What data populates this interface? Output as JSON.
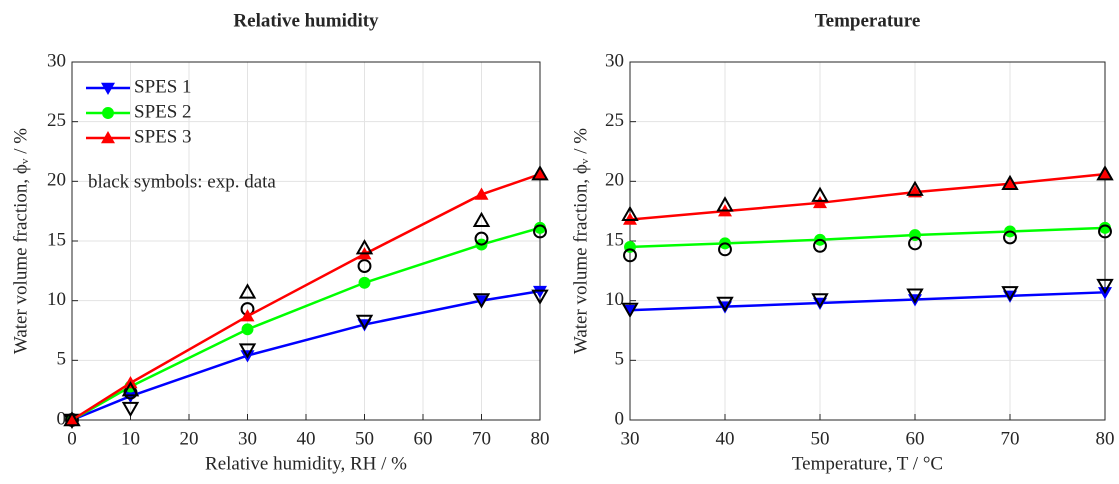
{
  "chart_data": [
    {
      "type": "line",
      "title": "Relative humidity",
      "xlabel": "Relative humidity, RH / %",
      "ylabel": "Water volume fraction, ϕᵥ / %",
      "x": [
        0,
        10,
        30,
        50,
        70,
        80
      ],
      "xlim": [
        0,
        80
      ],
      "xticks": [
        0,
        10,
        20,
        30,
        40,
        50,
        60,
        70,
        80
      ],
      "ylim": [
        0,
        30
      ],
      "yticks": [
        0,
        5,
        10,
        15,
        20,
        25,
        30
      ],
      "grid": true,
      "legend": "upper left",
      "annotation": "black symbols: exp. data",
      "series": [
        {
          "name": "SPES 1",
          "color": "#0000ff",
          "marker": "v",
          "values": [
            0,
            2.0,
            5.4,
            8.0,
            10.0,
            10.8
          ],
          "exp_values": [
            0,
            1.0,
            5.9,
            8.3,
            10.1,
            10.4
          ]
        },
        {
          "name": "SPES 2",
          "color": "#00ff00",
          "marker": "o",
          "values": [
            0,
            2.8,
            7.6,
            11.5,
            14.7,
            16.1
          ],
          "exp_values": [
            0,
            2.3,
            9.3,
            12.9,
            15.2,
            15.8
          ]
        },
        {
          "name": "SPES 3",
          "color": "#ff0000",
          "marker": "^",
          "values": [
            0,
            3.1,
            8.7,
            13.9,
            18.9,
            20.6
          ],
          "exp_values": [
            0,
            2.5,
            10.7,
            14.4,
            16.7,
            20.6
          ]
        }
      ]
    },
    {
      "type": "line",
      "title": "Temperature",
      "xlabel": "Temperature, T / °C",
      "ylabel": "Water volume fraction, ϕᵥ / %",
      "x": [
        30,
        40,
        50,
        60,
        70,
        80
      ],
      "xlim": [
        30,
        80
      ],
      "xticks": [
        30,
        40,
        50,
        60,
        70,
        80
      ],
      "ylim": [
        0,
        30
      ],
      "yticks": [
        0,
        5,
        10,
        15,
        20,
        25,
        30
      ],
      "grid": true,
      "series": [
        {
          "color": "#0000ff",
          "marker": "v",
          "values": [
            9.2,
            9.5,
            9.8,
            10.1,
            10.4,
            10.7
          ],
          "exp_values": [
            9.3,
            9.8,
            10.1,
            10.5,
            10.7,
            11.3
          ]
        },
        {
          "color": "#00ff00",
          "marker": "o",
          "values": [
            14.5,
            14.8,
            15.1,
            15.5,
            15.8,
            16.1
          ],
          "exp_values": [
            13.8,
            14.3,
            14.6,
            14.8,
            15.3,
            15.8
          ]
        },
        {
          "color": "#ff0000",
          "marker": "^",
          "values": [
            16.8,
            17.5,
            18.2,
            19.1,
            19.8,
            20.6
          ],
          "exp_values": [
            17.2,
            18.0,
            18.8,
            19.3,
            19.8,
            20.6
          ]
        }
      ]
    }
  ]
}
